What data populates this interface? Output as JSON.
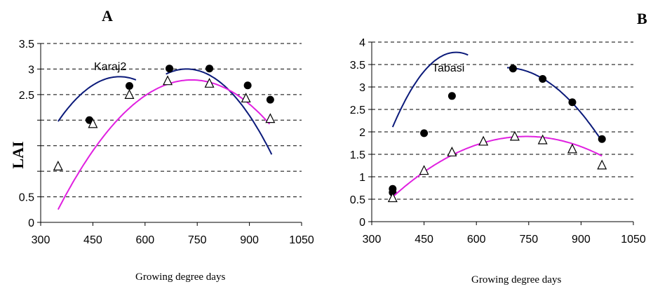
{
  "panel_a_letter": "A",
  "panel_b_letter": "B",
  "colors": {
    "upper_curve": "#0b1a7a",
    "lower_curve": "#e020e0",
    "marker": "#000000",
    "grid": "#000000"
  },
  "chart_data": [
    {
      "type": "scatter",
      "panel": "A",
      "annotation": "Karaj2",
      "xlabel": "Growing degree days",
      "ylabel": "LAI",
      "xlim": [
        300,
        1050
      ],
      "ylim": [
        0,
        3.5
      ],
      "x_ticks": [
        "300",
        "450",
        "600",
        "750",
        "900",
        "1050"
      ],
      "y_ticks": [
        {
          "v": 0,
          "label": "0"
        },
        {
          "v": 0.5,
          "label": "0.5"
        },
        {
          "v": 1,
          "label": ""
        },
        {
          "v": 1.5,
          "label": ""
        },
        {
          "v": 2,
          "label": ""
        },
        {
          "v": 2.5,
          "label": "2.5"
        },
        {
          "v": 3,
          "label": "3"
        },
        {
          "v": 3.5,
          "label": "3.5"
        }
      ],
      "grid": true,
      "series": [
        {
          "marker": "filled-circle",
          "points": [
            [
              440,
              2.0
            ],
            [
              555,
              2.67
            ],
            [
              670,
              3.01
            ],
            [
              785,
              3.01
            ],
            [
              895,
              2.68
            ],
            [
              960,
              2.4
            ]
          ],
          "fits": [
            {
              "from": 350,
              "to": 575,
              "coef": [
                -2.8e-05,
                0.0295,
                -4.92
              ]
            },
            {
              "from": 660,
              "to": 965,
              "coef": [
                -2.8e-05,
                0.0403,
                -11.5
              ]
            }
          ]
        },
        {
          "marker": "open-triangle",
          "points": [
            [
              350,
              1.1
            ],
            [
              450,
              1.93
            ],
            [
              555,
              2.5
            ],
            [
              665,
              2.77
            ],
            [
              785,
              2.72
            ],
            [
              890,
              2.43
            ],
            [
              960,
              2.03
            ]
          ],
          "fits": [
            {
              "from": 350,
              "to": 960,
              "coef": [
                -1.72e-05,
                0.02525,
                -6.48
              ]
            }
          ]
        }
      ]
    },
    {
      "type": "scatter",
      "panel": "B",
      "annotation": "Tabasi",
      "xlabel": "Growing degree days",
      "ylabel": "",
      "xlim": [
        300,
        1050
      ],
      "ylim": [
        0,
        4
      ],
      "x_ticks": [
        "300",
        "450",
        "600",
        "750",
        "900",
        "1050"
      ],
      "y_ticks": [
        {
          "v": 0,
          "label": "0"
        },
        {
          "v": 0.5,
          "label": "0.5"
        },
        {
          "v": 1,
          "label": "1"
        },
        {
          "v": 1.5,
          "label": "1.5"
        },
        {
          "v": 2,
          "label": "2"
        },
        {
          "v": 2.5,
          "label": "2.5"
        },
        {
          "v": 3,
          "label": "3"
        },
        {
          "v": 3.5,
          "label": "3.5"
        },
        {
          "v": 4,
          "label": "4"
        }
      ],
      "grid": true,
      "series": [
        {
          "marker": "filled-circle",
          "points": [
            [
              360,
              0.73
            ],
            [
              360,
              0.65
            ],
            [
              450,
              1.97
            ],
            [
              530,
              2.8
            ],
            [
              705,
              3.41
            ],
            [
              790,
              3.18
            ],
            [
              875,
              2.66
            ],
            [
              960,
              1.84
            ]
          ],
          "fits": [
            {
              "from": 360,
              "to": 578,
              "coef": [
                -5.05e-05,
                0.0547,
                -11.04
              ]
            },
            {
              "from": 688,
              "to": 958,
              "coef": [
                -2.15e-05,
                0.0294,
                -6.62
              ]
            }
          ]
        },
        {
          "marker": "open-triangle",
          "points": [
            [
              360,
              0.53
            ],
            [
              450,
              1.14
            ],
            [
              530,
              1.55
            ],
            [
              620,
              1.79
            ],
            [
              710,
              1.9
            ],
            [
              790,
              1.82
            ],
            [
              875,
              1.62
            ],
            [
              960,
              1.26
            ]
          ],
          "fits": [
            {
              "from": 360,
              "to": 960,
              "coef": [
                -9.2e-06,
                0.01367,
                -3.18
              ]
            }
          ]
        }
      ]
    }
  ]
}
